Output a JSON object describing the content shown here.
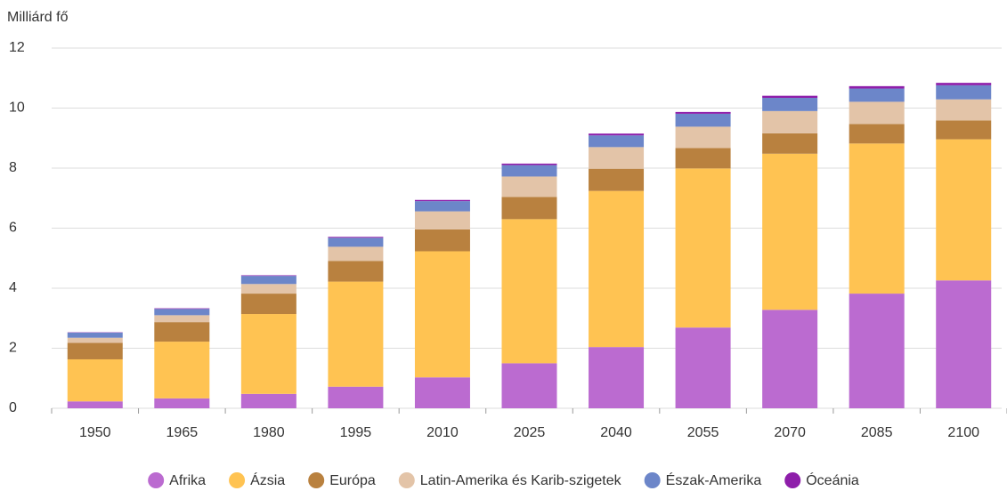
{
  "chart_data": {
    "type": "stacked_bar",
    "ylabel": "Milliárd fő",
    "categories": [
      "1950",
      "1965",
      "1980",
      "1995",
      "2010",
      "2025",
      "2040",
      "2055",
      "2070",
      "2085",
      "2100"
    ],
    "series": [
      {
        "name": "Afrika",
        "color": "#bb6bd0",
        "values": [
          0.23,
          0.33,
          0.48,
          0.72,
          1.03,
          1.5,
          2.04,
          2.69,
          3.28,
          3.82,
          4.26
        ]
      },
      {
        "name": "Ázsia",
        "color": "#ffc352",
        "values": [
          1.4,
          1.89,
          2.66,
          3.5,
          4.2,
          4.8,
          5.2,
          5.3,
          5.2,
          5.0,
          4.7
        ]
      },
      {
        "name": "Európa",
        "color": "#b9813f",
        "values": [
          0.55,
          0.65,
          0.68,
          0.69,
          0.73,
          0.74,
          0.74,
          0.68,
          0.68,
          0.65,
          0.63
        ]
      },
      {
        "name": "Latin-Amerika és Karib-szigetek",
        "color": "#e3c4a8",
        "values": [
          0.17,
          0.23,
          0.32,
          0.47,
          0.6,
          0.68,
          0.72,
          0.71,
          0.74,
          0.74,
          0.7
        ]
      },
      {
        "name": "Észak-Amerika",
        "color": "#6c86c9",
        "values": [
          0.17,
          0.21,
          0.27,
          0.3,
          0.34,
          0.38,
          0.39,
          0.43,
          0.44,
          0.44,
          0.47
        ]
      },
      {
        "name": "Óceánia",
        "color": "#8e1eaa",
        "values": [
          0.01,
          0.02,
          0.02,
          0.03,
          0.04,
          0.05,
          0.06,
          0.06,
          0.07,
          0.08,
          0.08
        ]
      }
    ],
    "ylim": [
      0,
      12
    ],
    "yticks": [
      0,
      2,
      4,
      6,
      8,
      10,
      12
    ],
    "grid": true,
    "legend": "bottom"
  }
}
